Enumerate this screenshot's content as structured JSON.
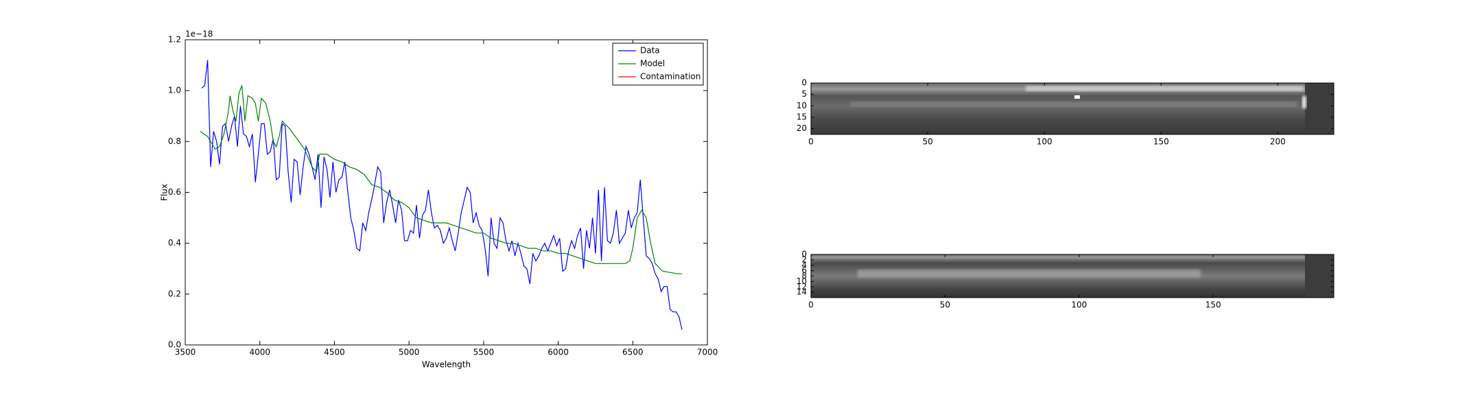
{
  "chart_data": [
    {
      "type": "line",
      "xlabel": "Wavelength",
      "ylabel": "Flux",
      "y_offset_label": "1e−18",
      "xlim": [
        3500,
        7000
      ],
      "xticks": [
        3500,
        4000,
        4500,
        5000,
        5500,
        6000,
        6500,
        7000
      ],
      "ylim": [
        0,
        1.2
      ],
      "yticks": [
        {
          "value": 0,
          "label": "0.0"
        },
        0.2,
        0.4,
        0.6,
        0.8,
        {
          "value": 1,
          "label": "1.0"
        },
        1.2
      ],
      "legend": "upper right",
      "series": [
        {
          "name": "Data",
          "color": "#0000ff",
          "x": [
            3610,
            3630,
            3650,
            3670,
            3690,
            3710,
            3730,
            3750,
            3770,
            3790,
            3810,
            3830,
            3850,
            3870,
            3890,
            3910,
            3930,
            3950,
            3970,
            3990,
            4010,
            4030,
            4050,
            4070,
            4090,
            4110,
            4130,
            4150,
            4170,
            4190,
            4210,
            4230,
            4250,
            4270,
            4290,
            4310,
            4330,
            4350,
            4370,
            4390,
            4410,
            4430,
            4450,
            4470,
            4490,
            4510,
            4530,
            4550,
            4570,
            4590,
            4610,
            4630,
            4650,
            4670,
            4690,
            4710,
            4730,
            4760,
            4790,
            4810,
            4830,
            4850,
            4870,
            4890,
            4910,
            4930,
            4950,
            4970,
            4990,
            5010,
            5030,
            5050,
            5070,
            5090,
            5110,
            5130,
            5150,
            5170,
            5190,
            5210,
            5230,
            5250,
            5270,
            5290,
            5310,
            5330,
            5350,
            5370,
            5390,
            5410,
            5430,
            5450,
            5470,
            5490,
            5510,
            5530,
            5550,
            5570,
            5590,
            5610,
            5630,
            5650,
            5670,
            5690,
            5710,
            5730,
            5750,
            5770,
            5790,
            5810,
            5830,
            5850,
            5870,
            5890,
            5910,
            5930,
            5950,
            5970,
            5990,
            6010,
            6030,
            6050,
            6070,
            6090,
            6110,
            6130,
            6150,
            6170,
            6190,
            6210,
            6230,
            6250,
            6270,
            6290,
            6310,
            6330,
            6350,
            6370,
            6390,
            6410,
            6430,
            6450,
            6470,
            6490,
            6510,
            6530,
            6550,
            6570,
            6590,
            6610,
            6630,
            6650,
            6670,
            6690,
            6710,
            6730,
            6750,
            6770,
            6790,
            6810,
            6830
          ],
          "values": [
            1.01,
            1.02,
            1.12,
            0.7,
            0.84,
            0.8,
            0.71,
            0.86,
            0.87,
            0.8,
            0.86,
            0.9,
            0.78,
            0.94,
            0.83,
            0.82,
            0.78,
            0.83,
            0.64,
            0.75,
            0.87,
            0.87,
            0.75,
            0.76,
            0.81,
            0.65,
            0.66,
            0.87,
            0.86,
            0.68,
            0.56,
            0.73,
            0.72,
            0.59,
            0.7,
            0.78,
            0.75,
            0.7,
            0.65,
            0.75,
            0.54,
            0.74,
            0.69,
            0.58,
            0.72,
            0.6,
            0.65,
            0.66,
            0.72,
            0.6,
            0.5,
            0.45,
            0.38,
            0.37,
            0.48,
            0.45,
            0.52,
            0.6,
            0.7,
            0.68,
            0.48,
            0.56,
            0.61,
            0.55,
            0.48,
            0.57,
            0.53,
            0.41,
            0.41,
            0.45,
            0.44,
            0.55,
            0.42,
            0.51,
            0.53,
            0.61,
            0.52,
            0.46,
            0.47,
            0.45,
            0.4,
            0.42,
            0.46,
            0.41,
            0.37,
            0.44,
            0.52,
            0.57,
            0.62,
            0.6,
            0.48,
            0.52,
            0.47,
            0.45,
            0.38,
            0.27,
            0.5,
            0.4,
            0.38,
            0.5,
            0.48,
            0.41,
            0.37,
            0.41,
            0.35,
            0.4,
            0.36,
            0.31,
            0.3,
            0.24,
            0.36,
            0.33,
            0.35,
            0.38,
            0.4,
            0.37,
            0.4,
            0.43,
            0.39,
            0.42,
            0.29,
            0.3,
            0.37,
            0.41,
            0.38,
            0.43,
            0.46,
            0.3,
            0.45,
            0.38,
            0.5,
            0.36,
            0.61,
            0.33,
            0.62,
            0.41,
            0.4,
            0.44,
            0.53,
            0.4,
            0.42,
            0.44,
            0.53,
            0.46,
            0.5,
            0.52,
            0.65,
            0.5,
            0.35,
            0.34,
            0.32,
            0.28,
            0.26,
            0.21,
            0.23,
            0.23,
            0.14,
            0.13,
            0.13,
            0.11,
            0.06
          ]
        },
        {
          "name": "Model",
          "color": "#008000",
          "x": [
            3600,
            3650,
            3680,
            3700,
            3730,
            3760,
            3790,
            3800,
            3820,
            3840,
            3860,
            3880,
            3900,
            3920,
            3950,
            3970,
            3990,
            4010,
            4040,
            4070,
            4090,
            4110,
            4130,
            4150,
            4200,
            4250,
            4300,
            4350,
            4380,
            4400,
            4450,
            4500,
            4550,
            4600,
            4650,
            4700,
            4750,
            4800,
            4850,
            4900,
            4950,
            5000,
            5050,
            5100,
            5150,
            5200,
            5250,
            5300,
            5350,
            5400,
            5450,
            5500,
            5550,
            5600,
            5650,
            5700,
            5750,
            5800,
            5850,
            5900,
            5950,
            6000,
            6050,
            6100,
            6150,
            6200,
            6250,
            6300,
            6350,
            6400,
            6450,
            6480,
            6500,
            6530,
            6560,
            6590,
            6620,
            6650,
            6700,
            6750,
            6800,
            6830
          ],
          "values": [
            0.84,
            0.82,
            0.79,
            0.77,
            0.78,
            0.83,
            0.92,
            0.98,
            0.92,
            0.88,
            0.99,
            1.02,
            0.88,
            0.98,
            0.97,
            0.95,
            0.88,
            0.97,
            0.95,
            0.88,
            0.8,
            0.78,
            0.82,
            0.88,
            0.85,
            0.81,
            0.77,
            0.7,
            0.68,
            0.75,
            0.75,
            0.73,
            0.72,
            0.7,
            0.69,
            0.67,
            0.63,
            0.62,
            0.6,
            0.57,
            0.56,
            0.54,
            0.5,
            0.49,
            0.48,
            0.48,
            0.48,
            0.47,
            0.46,
            0.45,
            0.44,
            0.44,
            0.42,
            0.41,
            0.4,
            0.4,
            0.39,
            0.38,
            0.38,
            0.37,
            0.37,
            0.36,
            0.36,
            0.35,
            0.34,
            0.33,
            0.32,
            0.32,
            0.32,
            0.32,
            0.32,
            0.33,
            0.38,
            0.5,
            0.53,
            0.5,
            0.4,
            0.32,
            0.29,
            0.285,
            0.28,
            0.28
          ]
        },
        {
          "name": "Contamination",
          "color": "#ff0000"
        }
      ]
    },
    {
      "type": "image",
      "xlim": [
        0,
        224
      ],
      "xticks": [
        0,
        50,
        100,
        150,
        200
      ],
      "ylim": [
        0,
        22.5
      ],
      "yticks": [
        0,
        5,
        10,
        15,
        20
      ],
      "y_inverted": true
    },
    {
      "type": "image",
      "xlim": [
        0,
        195
      ],
      "xticks": [
        0,
        50,
        100,
        150
      ],
      "ylim": [
        0,
        16
      ],
      "yticks": [
        0,
        2,
        4,
        6,
        8,
        10,
        12,
        14
      ],
      "y_inverted": true
    }
  ]
}
